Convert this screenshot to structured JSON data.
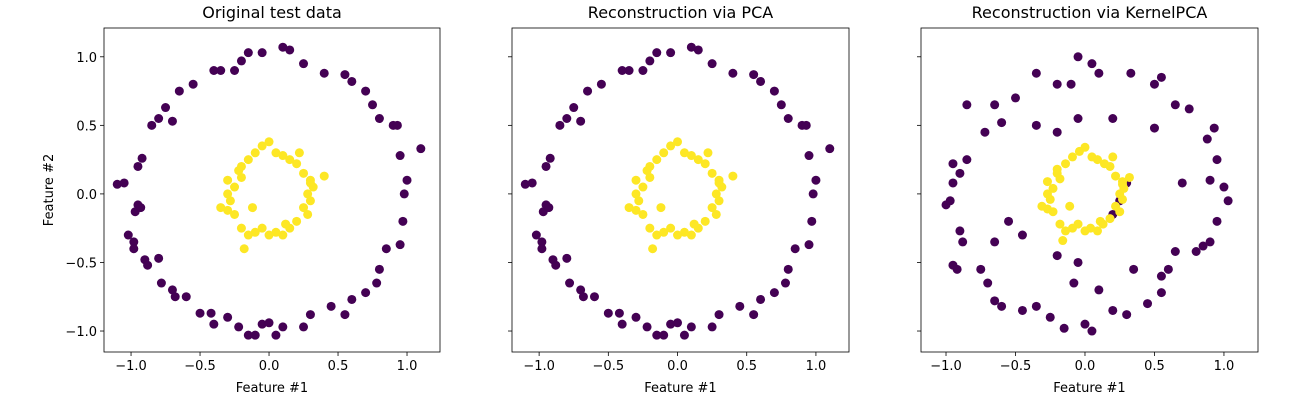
{
  "chart_data": [
    {
      "type": "scatter",
      "title": "Original test data",
      "x_label": "Feature #1",
      "y_label": "Feature #2",
      "xlim": [
        -1.196,
        1.239
      ],
      "ylim": [
        -1.153,
        1.21
      ],
      "xticks": [
        {
          "value": -1.0,
          "label": "−1.0"
        },
        {
          "value": -0.5,
          "label": "−0.5"
        },
        {
          "value": 0.0,
          "label": "0.0"
        },
        {
          "value": 0.5,
          "label": "0.5"
        },
        {
          "value": 1.0,
          "label": "1.0"
        }
      ],
      "yticks": [
        {
          "value": -1.0,
          "label": "−1.0"
        },
        {
          "value": -0.5,
          "label": "−0.5"
        },
        {
          "value": 0.0,
          "label": "0.0"
        },
        {
          "value": 0.5,
          "label": "0.5"
        },
        {
          "value": 1.0,
          "label": "1.0"
        }
      ],
      "series": [
        {
          "color": "#440154",
          "x": [
            -1.1,
            -1.05,
            -0.95,
            -0.97,
            -0.93,
            -1.02,
            -0.98,
            -0.95,
            -0.92,
            -0.98,
            -0.9,
            -0.88,
            -0.8,
            -0.78,
            -0.7,
            -0.68,
            -0.6,
            -0.5,
            -0.42,
            -0.4,
            -0.3,
            -0.22,
            -0.15,
            -0.05,
            0.0,
            0.05,
            0.1,
            0.25,
            0.3,
            0.45,
            0.55,
            0.6,
            0.7,
            0.78,
            0.8,
            0.85,
            0.95,
            0.97,
            1.0,
            1.1,
            0.98,
            0.95,
            0.9,
            0.8,
            0.75,
            0.7,
            0.6,
            0.55,
            0.4,
            0.15,
            0.1,
            -0.05,
            -0.15,
            -0.2,
            -0.25,
            -0.35,
            -0.4,
            -0.55,
            -0.65,
            -0.75,
            -0.8,
            -0.85,
            -0.7,
            0.25,
            -0.1,
            0.93
          ],
          "y": [
            0.07,
            0.08,
            -0.08,
            -0.13,
            -0.1,
            -0.3,
            -0.35,
            0.2,
            0.26,
            -0.4,
            -0.48,
            -0.52,
            -0.47,
            -0.65,
            -0.7,
            -0.75,
            -0.75,
            -0.87,
            -0.87,
            -0.95,
            -0.9,
            -0.97,
            -1.03,
            -0.95,
            -0.94,
            -1.03,
            -0.97,
            -0.97,
            -0.88,
            -0.82,
            -0.88,
            -0.77,
            -0.72,
            -0.65,
            -0.55,
            -0.4,
            -0.37,
            -0.2,
            0.1,
            0.33,
            0.0,
            0.28,
            0.5,
            0.55,
            0.65,
            0.75,
            0.82,
            0.87,
            0.88,
            1.05,
            1.07,
            1.03,
            1.03,
            0.97,
            0.9,
            0.9,
            0.9,
            0.8,
            0.75,
            0.63,
            0.55,
            0.5,
            0.53,
            0.95,
            -1.03,
            0.5
          ]
        },
        {
          "color": "#fde725",
          "x": [
            -0.2,
            -0.15,
            -0.1,
            -0.05,
            0.0,
            0.05,
            0.1,
            0.15,
            0.2,
            0.25,
            0.3,
            0.32,
            0.28,
            0.3,
            0.25,
            0.28,
            0.2,
            0.15,
            0.1,
            0.05,
            0.0,
            -0.05,
            -0.1,
            -0.15,
            -0.2,
            -0.25,
            -0.3,
            -0.35,
            -0.28,
            -0.3,
            -0.25,
            -0.3,
            -0.2,
            -0.18,
            0.4,
            -0.12,
            0.22,
            0.12,
            -0.22,
            0.3
          ],
          "y": [
            0.2,
            0.25,
            0.3,
            0.35,
            0.38,
            0.3,
            0.28,
            0.25,
            0.22,
            0.15,
            0.1,
            0.05,
            0.0,
            -0.05,
            -0.1,
            -0.15,
            -0.2,
            -0.25,
            -0.3,
            -0.28,
            -0.3,
            -0.25,
            -0.28,
            -0.3,
            -0.25,
            -0.15,
            -0.12,
            -0.1,
            -0.05,
            0.0,
            0.05,
            0.1,
            0.12,
            -0.4,
            0.13,
            -0.1,
            0.3,
            -0.22,
            0.17,
            0.08
          ]
        }
      ]
    },
    {
      "type": "scatter",
      "title": "Reconstruction via PCA",
      "x_label": "Feature #1",
      "xlim": [
        -1.196,
        1.239
      ],
      "ylim": [
        -1.153,
        1.21
      ],
      "xticks": [
        {
          "value": -1.0,
          "label": "−1.0"
        },
        {
          "value": -0.5,
          "label": "−0.5"
        },
        {
          "value": 0.0,
          "label": "0.0"
        },
        {
          "value": 0.5,
          "label": "0.5"
        },
        {
          "value": 1.0,
          "label": "1.0"
        }
      ],
      "yticks": [
        -1,
        -0.5,
        0,
        0.5,
        1
      ],
      "series": [
        {
          "color": "#440154",
          "x": [
            -1.1,
            -1.05,
            -0.95,
            -0.97,
            -0.93,
            -1.02,
            -0.98,
            -0.95,
            -0.92,
            -0.98,
            -0.9,
            -0.88,
            -0.8,
            -0.78,
            -0.7,
            -0.68,
            -0.6,
            -0.5,
            -0.42,
            -0.4,
            -0.3,
            -0.22,
            -0.15,
            -0.05,
            0.0,
            0.05,
            0.1,
            0.25,
            0.3,
            0.45,
            0.55,
            0.6,
            0.7,
            0.78,
            0.8,
            0.85,
            0.95,
            0.97,
            1.0,
            1.1,
            0.98,
            0.95,
            0.9,
            0.8,
            0.75,
            0.7,
            0.6,
            0.55,
            0.4,
            0.15,
            0.1,
            -0.05,
            -0.15,
            -0.2,
            -0.25,
            -0.35,
            -0.4,
            -0.55,
            -0.65,
            -0.75,
            -0.8,
            -0.85,
            -0.7,
            0.25,
            -0.1,
            0.93
          ],
          "y": [
            0.07,
            0.08,
            -0.08,
            -0.13,
            -0.1,
            -0.3,
            -0.35,
            0.2,
            0.26,
            -0.4,
            -0.48,
            -0.52,
            -0.47,
            -0.65,
            -0.7,
            -0.75,
            -0.75,
            -0.87,
            -0.87,
            -0.95,
            -0.9,
            -0.97,
            -1.03,
            -0.95,
            -0.94,
            -1.03,
            -0.97,
            -0.97,
            -0.88,
            -0.82,
            -0.88,
            -0.77,
            -0.72,
            -0.65,
            -0.55,
            -0.4,
            -0.37,
            -0.2,
            0.1,
            0.33,
            0.0,
            0.28,
            0.5,
            0.55,
            0.65,
            0.75,
            0.82,
            0.87,
            0.88,
            1.05,
            1.07,
            1.03,
            1.03,
            0.97,
            0.9,
            0.9,
            0.9,
            0.8,
            0.75,
            0.63,
            0.55,
            0.5,
            0.53,
            0.95,
            -1.03,
            0.5
          ]
        },
        {
          "color": "#fde725",
          "x": [
            -0.2,
            -0.15,
            -0.1,
            -0.05,
            0.0,
            0.05,
            0.1,
            0.15,
            0.2,
            0.25,
            0.3,
            0.32,
            0.28,
            0.3,
            0.25,
            0.28,
            0.2,
            0.15,
            0.1,
            0.05,
            0.0,
            -0.05,
            -0.1,
            -0.15,
            -0.2,
            -0.25,
            -0.3,
            -0.35,
            -0.28,
            -0.3,
            -0.25,
            -0.3,
            -0.2,
            -0.18,
            0.4,
            -0.12,
            0.22,
            0.12,
            -0.22,
            0.3
          ],
          "y": [
            0.2,
            0.25,
            0.3,
            0.35,
            0.38,
            0.3,
            0.28,
            0.25,
            0.22,
            0.15,
            0.1,
            0.05,
            0.0,
            -0.05,
            -0.1,
            -0.15,
            -0.2,
            -0.25,
            -0.3,
            -0.28,
            -0.3,
            -0.25,
            -0.28,
            -0.3,
            -0.25,
            -0.15,
            -0.12,
            -0.1,
            -0.05,
            0.0,
            0.05,
            0.1,
            0.12,
            -0.4,
            0.13,
            -0.1,
            0.3,
            -0.22,
            0.17,
            0.08
          ]
        }
      ]
    },
    {
      "type": "scatter",
      "title": "Reconstruction via KernelPCA",
      "x_label": "Feature #1",
      "xlim": [
        -1.18,
        1.245
      ],
      "ylim": [
        -1.153,
        1.21
      ],
      "xticks": [
        {
          "value": -1.0,
          "label": "−1.0"
        },
        {
          "value": -0.5,
          "label": "−0.5"
        },
        {
          "value": 0.0,
          "label": "0.0"
        },
        {
          "value": 0.5,
          "label": "0.5"
        },
        {
          "value": 1.0,
          "label": "1.0"
        }
      ],
      "yticks": [
        -1,
        -0.5,
        0,
        0.5,
        1
      ],
      "series": [
        {
          "color": "#440154",
          "x": [
            -1.0,
            -0.97,
            -0.95,
            -0.9,
            -0.95,
            -0.9,
            -0.88,
            -0.95,
            -0.92,
            -0.75,
            -0.7,
            -0.65,
            -0.6,
            -0.45,
            -0.35,
            -0.25,
            -0.15,
            0.0,
            0.05,
            0.2,
            0.3,
            0.45,
            0.55,
            0.55,
            0.6,
            0.65,
            0.8,
            0.85,
            0.9,
            0.95,
            1.03,
            1.0,
            0.9,
            0.95,
            0.88,
            0.93,
            0.75,
            0.65,
            0.55,
            0.5,
            0.33,
            0.1,
            0.05,
            -0.05,
            -0.2,
            -0.35,
            -0.5,
            -0.65,
            -0.85,
            -0.72,
            -0.6,
            -0.35,
            -0.2,
            -0.05,
            0.2,
            0.5,
            -0.85,
            -0.55,
            -0.45,
            -0.05,
            -0.2,
            0.25,
            0.3,
            0.2,
            -0.08,
            0.1,
            0.35,
            -0.65,
            0.7,
            -0.1
          ],
          "y": [
            -0.08,
            -0.05,
            0.08,
            0.15,
            0.22,
            -0.27,
            -0.35,
            -0.52,
            -0.55,
            -0.55,
            -0.65,
            -0.78,
            -0.82,
            -0.85,
            -0.82,
            -0.9,
            -0.98,
            -0.95,
            -1.0,
            -0.85,
            -0.88,
            -0.8,
            -0.72,
            -0.6,
            -0.55,
            -0.42,
            -0.42,
            -0.38,
            -0.35,
            -0.2,
            -0.05,
            0.05,
            0.1,
            0.25,
            0.4,
            0.48,
            0.62,
            0.65,
            0.85,
            0.8,
            0.88,
            0.88,
            0.95,
            1.0,
            0.8,
            0.88,
            0.7,
            0.65,
            0.65,
            0.45,
            0.52,
            0.5,
            0.45,
            0.55,
            0.55,
            0.48,
            0.25,
            -0.2,
            -0.3,
            -0.5,
            -0.45,
            -0.05,
            0.08,
            -0.15,
            -0.65,
            -0.7,
            -0.55,
            -0.35,
            0.08,
            0.8
          ]
        },
        {
          "color": "#fde725",
          "x": [
            -0.2,
            -0.14,
            -0.09,
            -0.04,
            0.0,
            0.05,
            0.09,
            0.14,
            0.18,
            0.22,
            0.27,
            0.28,
            0.25,
            0.27,
            0.22,
            0.25,
            0.18,
            0.13,
            0.09,
            0.04,
            0.0,
            -0.05,
            -0.09,
            -0.14,
            -0.18,
            -0.23,
            -0.27,
            -0.31,
            -0.25,
            -0.27,
            -0.23,
            -0.27,
            -0.18,
            -0.16,
            0.32,
            -0.11,
            0.2,
            0.11,
            -0.2,
            0.27
          ],
          "y": [
            0.18,
            0.22,
            0.27,
            0.31,
            0.34,
            0.27,
            0.25,
            0.22,
            0.2,
            0.13,
            0.09,
            0.04,
            0.0,
            -0.04,
            -0.09,
            -0.13,
            -0.18,
            -0.22,
            -0.27,
            -0.25,
            -0.27,
            -0.22,
            -0.25,
            -0.27,
            -0.22,
            -0.13,
            -0.11,
            -0.09,
            -0.04,
            0.0,
            0.04,
            0.09,
            0.11,
            -0.34,
            0.12,
            -0.09,
            0.27,
            -0.2,
            0.15,
            0.07
          ]
        }
      ]
    }
  ]
}
